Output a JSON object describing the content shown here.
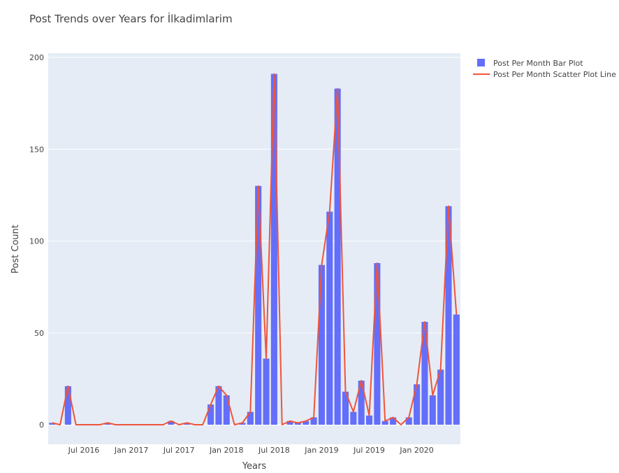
{
  "chart_data": {
    "type": "bar",
    "title": "Post Trends over Years for İlkadimlarim",
    "xlabel": "Years",
    "ylabel": "Post Count",
    "ylim": [
      -10,
      200
    ],
    "yticks": [
      0,
      50,
      100,
      150,
      200
    ],
    "xtick_labels": [
      "Jul 2016",
      "Jan 2017",
      "Jul 2017",
      "Jan 2018",
      "Jul 2018",
      "Jan 2019",
      "Jul 2019",
      "Jan 2020"
    ],
    "x": [
      "2016-03",
      "2016-04",
      "2016-05",
      "2016-06",
      "2016-07",
      "2016-08",
      "2016-09",
      "2016-10",
      "2016-11",
      "2016-12",
      "2017-01",
      "2017-02",
      "2017-03",
      "2017-04",
      "2017-05",
      "2017-06",
      "2017-07",
      "2017-08",
      "2017-09",
      "2017-10",
      "2017-11",
      "2017-12",
      "2018-01",
      "2018-02",
      "2018-03",
      "2018-04",
      "2018-05",
      "2018-06",
      "2018-07",
      "2018-08",
      "2018-09",
      "2018-10",
      "2018-11",
      "2018-12",
      "2019-01",
      "2019-02",
      "2019-03",
      "2019-04",
      "2019-05",
      "2019-06",
      "2019-07",
      "2019-08",
      "2019-09",
      "2019-10",
      "2019-11",
      "2019-12",
      "2020-01",
      "2020-02",
      "2020-03",
      "2020-04",
      "2020-05",
      "2020-06"
    ],
    "series": [
      {
        "name": "Post Per Month Bar Plot",
        "type": "bar",
        "color": "#636efa",
        "values": [
          1,
          0,
          21,
          0,
          0,
          0,
          0,
          1,
          0,
          0,
          0,
          0,
          0,
          0,
          0,
          2,
          0,
          1,
          0,
          0,
          11,
          21,
          16,
          0,
          1,
          7,
          130,
          36,
          191,
          0,
          2,
          1,
          2,
          4,
          87,
          116,
          183,
          18,
          7,
          24,
          5,
          88,
          2,
          4,
          0,
          4,
          22,
          56,
          16,
          30,
          119,
          60
        ]
      },
      {
        "name": "Post Per Month Scatter Plot Line",
        "type": "line",
        "color": "#ef553b",
        "values": [
          1,
          0,
          21,
          0,
          0,
          0,
          0,
          1,
          0,
          0,
          0,
          0,
          0,
          0,
          0,
          2,
          0,
          1,
          0,
          0,
          11,
          21,
          16,
          0,
          1,
          7,
          130,
          36,
          191,
          0,
          2,
          1,
          2,
          4,
          87,
          116,
          183,
          18,
          7,
          24,
          5,
          88,
          2,
          4,
          0,
          4,
          22,
          56,
          16,
          30,
          119,
          60
        ]
      }
    ],
    "grid": true,
    "legend": "top-right"
  }
}
